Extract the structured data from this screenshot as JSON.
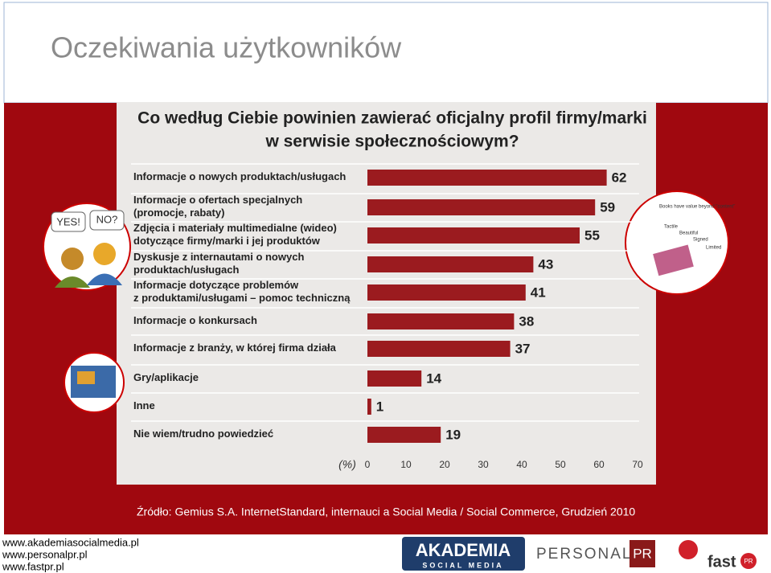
{
  "slide": {
    "title": "Oczekiwania użytkowników",
    "source": "Źródło: Gemius S.A. InternetStandard, internauci a Social Media / Social Commerce, Grudzień 2010",
    "links": [
      "www.akademiasocialmedia.pl",
      "www.personalpr.pl",
      "www.fastpr.pl"
    ],
    "bubbles": [
      "YES!",
      "NO?"
    ],
    "book_texts": [
      "Books have value beyond \"content\"",
      "Tactile",
      "Beautiful",
      "Signed",
      "Limited"
    ],
    "logos": {
      "akademia": "AKADEMIA",
      "akademia_sub": "SOCIAL MEDIA",
      "personal": "PERSONAL",
      "pr": "PR",
      "fast": "fast",
      "fast_pr": "PR"
    }
  },
  "chart_data": {
    "type": "bar",
    "orientation": "horizontal",
    "title": [
      "Co według Ciebie powinien zawierać oficjalny profil firmy/marki",
      "w serwisie społecznościowym?"
    ],
    "categories": [
      "Informacje o nowych produktach/usługach",
      "Informacje o ofertach specjalnych\n(promocje, rabaty)",
      "Zdjęcia i materiały multimedialne (wideo)\ndotyczące firmy/marki i jej produktów",
      "Dyskusje z internautami o nowych\nproduktach/usługach",
      "Informacje dotyczące problemów\nz produktami/usługami – pomoc techniczną",
      "Informacje o konkursach",
      "Informacje z branży, w której firma działa",
      "Gry/aplikacje",
      "Inne",
      "Nie wiem/trudno powiedzieć"
    ],
    "values": [
      62,
      59,
      55,
      43,
      41,
      38,
      37,
      14,
      1,
      19
    ],
    "color": "#9b1b1f",
    "x_label": "(%)",
    "xlim": [
      0,
      70
    ],
    "xticks": [
      0,
      10,
      20,
      30,
      40,
      50,
      60,
      70
    ]
  }
}
